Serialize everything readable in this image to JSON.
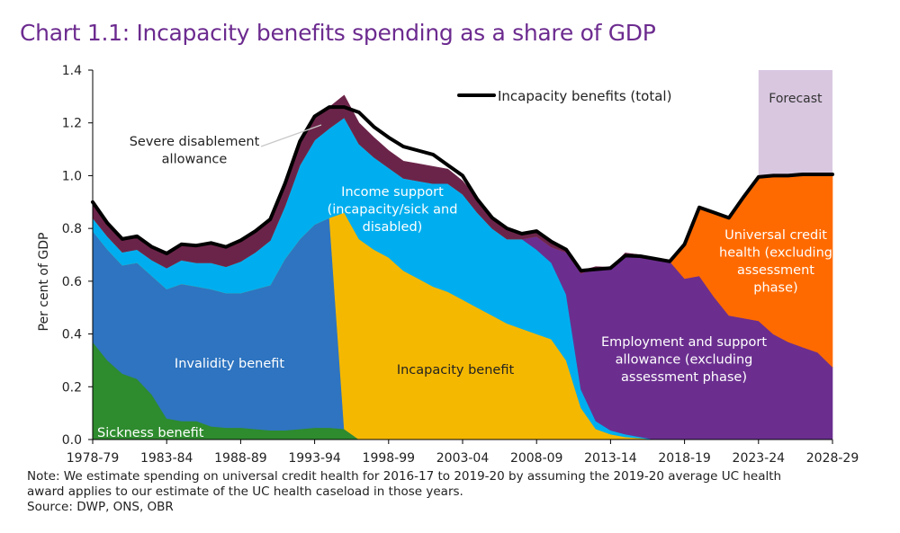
{
  "title": "Chart 1.1: Incapacity benefits spending as a share of GDP",
  "notes": {
    "note_line1": "Note: We estimate spending on universal credit health for 2016-17 to 2019-20 by assuming the 2019-20 average UC health",
    "note_line2": "award applies to our estimate of the UC health caseload in those years.",
    "source": "Source: DWP, ONS, OBR"
  },
  "chart_data": {
    "type": "area",
    "stacked": true,
    "title": "Chart 1.1: Incapacity benefits spending as a share of GDP",
    "xlabel": "",
    "ylabel": "Per cent of GDP",
    "ylim": [
      0,
      1.4
    ],
    "yticks": [
      "0.0",
      "0.2",
      "0.4",
      "0.6",
      "0.8",
      "1.0",
      "1.2",
      "1.4"
    ],
    "xticks": [
      "1978-79",
      "1983-84",
      "1988-89",
      "1993-94",
      "1998-99",
      "2003-04",
      "2008-09",
      "2013-14",
      "2018-19",
      "2023-24",
      "2028-29"
    ],
    "x_first_year": 1978,
    "x_last_year": 2028,
    "grid": false,
    "forecast": {
      "label": "Forecast",
      "from_year": 2023,
      "to_year": 2028,
      "color": "#d9c7e0"
    },
    "legend": {
      "label": "Incapacity benefits (total)",
      "position": "top-center"
    },
    "series": [
      {
        "name": "Sickness benefit",
        "color": "#2e8b2e",
        "values": [
          0.37,
          0.3,
          0.25,
          0.23,
          0.17,
          0.08,
          0.07,
          0.07,
          0.05,
          0.045,
          0.045,
          0.04,
          0.035,
          0.035,
          0.04,
          0.045,
          0.045,
          0.04,
          0,
          0,
          0,
          0,
          0,
          0,
          0,
          0,
          0,
          0,
          0,
          0,
          0,
          0,
          0,
          0,
          0,
          0,
          0,
          0,
          0,
          0,
          0,
          0,
          0,
          0,
          0,
          0,
          0,
          0,
          0,
          0,
          0
        ]
      },
      {
        "name": "Invalidity benefit",
        "color": "#2e74c0",
        "values": [
          0.42,
          0.42,
          0.41,
          0.44,
          0.45,
          0.49,
          0.52,
          0.51,
          0.52,
          0.51,
          0.51,
          0.53,
          0.55,
          0.65,
          0.72,
          0.77,
          0.795,
          0,
          0,
          0,
          0,
          0,
          0,
          0,
          0,
          0,
          0,
          0,
          0,
          0,
          0,
          0,
          0,
          0,
          0,
          0,
          0,
          0,
          0,
          0,
          0,
          0,
          0,
          0,
          0,
          0,
          0,
          0,
          0,
          0,
          0
        ]
      },
      {
        "name": "Incapacity benefit",
        "color": "#f5b800",
        "values": [
          0,
          0,
          0,
          0,
          0,
          0,
          0,
          0,
          0,
          0,
          0,
          0,
          0,
          0,
          0,
          0,
          0,
          0.82,
          0.76,
          0.72,
          0.69,
          0.64,
          0.61,
          0.58,
          0.56,
          0.53,
          0.5,
          0.47,
          0.44,
          0.42,
          0.4,
          0.38,
          0.3,
          0.12,
          0.04,
          0.02,
          0.01,
          0.005,
          0,
          0,
          0,
          0,
          0,
          0,
          0,
          0,
          0,
          0,
          0,
          0,
          0
        ]
      },
      {
        "name": "Income support (incapacity/sick and disabled)",
        "color": "#00aeef",
        "values": [
          0.05,
          0.05,
          0.05,
          0.05,
          0.06,
          0.08,
          0.09,
          0.09,
          0.1,
          0.1,
          0.12,
          0.14,
          0.17,
          0.2,
          0.28,
          0.32,
          0.34,
          0.36,
          0.36,
          0.35,
          0.34,
          0.35,
          0.37,
          0.39,
          0.41,
          0.4,
          0.36,
          0.33,
          0.32,
          0.34,
          0.32,
          0.29,
          0.25,
          0.07,
          0.03,
          0.015,
          0.01,
          0.005,
          0,
          0,
          0,
          0,
          0,
          0,
          0,
          0,
          0,
          0,
          0,
          0,
          0
        ]
      },
      {
        "name": "Employment and support allowance (excluding assessment phase)",
        "color": "#6b2e8f",
        "values": [
          0,
          0,
          0,
          0,
          0,
          0,
          0,
          0,
          0,
          0,
          0,
          0,
          0,
          0,
          0,
          0,
          0,
          0,
          0,
          0,
          0,
          0,
          0,
          0,
          0,
          0,
          0,
          0,
          0,
          0,
          0.05,
          0.06,
          0.16,
          0.44,
          0.58,
          0.615,
          0.685,
          0.69,
          0.685,
          0.675,
          0.61,
          0.62,
          0.54,
          0.47,
          0.46,
          0.45,
          0.4,
          0.37,
          0.35,
          0.33,
          0.275
        ]
      },
      {
        "name": "Universal credit health (excluding assessment phase)",
        "color": "#ff6a00",
        "values": [
          0,
          0,
          0,
          0,
          0,
          0,
          0,
          0,
          0,
          0,
          0,
          0,
          0,
          0,
          0,
          0,
          0,
          0,
          0,
          0,
          0,
          0,
          0,
          0,
          0,
          0,
          0,
          0,
          0,
          0,
          0,
          0,
          0,
          0,
          0,
          0,
          0,
          0,
          0,
          0,
          0.13,
          0.26,
          0.32,
          0.37,
          0.46,
          0.545,
          0.595,
          0.63,
          0.655,
          0.675,
          0.73
        ]
      },
      {
        "name": "Severe disablement allowance",
        "color": "#6b2449",
        "values": [
          0.06,
          0.05,
          0.05,
          0.05,
          0.05,
          0.055,
          0.06,
          0.065,
          0.07,
          0.075,
          0.08,
          0.08,
          0.08,
          0.085,
          0.09,
          0.09,
          0.08,
          0.085,
          0.08,
          0.075,
          0.065,
          0.065,
          0.065,
          0.065,
          0.055,
          0.05,
          0.05,
          0.04,
          0.04,
          0.02,
          0.02,
          0.02,
          0.01,
          0.01,
          0.005,
          0.003,
          0.002,
          0,
          0,
          0,
          0,
          0,
          0,
          0,
          0,
          0,
          0,
          0,
          0,
          0,
          0
        ]
      }
    ],
    "total": {
      "name": "Incapacity benefits (total)",
      "color": "#000000",
      "values": [
        0.9,
        0.82,
        0.76,
        0.77,
        0.73,
        0.705,
        0.74,
        0.735,
        0.745,
        0.73,
        0.755,
        0.79,
        0.835,
        0.97,
        1.13,
        1.225,
        1.26,
        1.26,
        1.24,
        1.185,
        1.145,
        1.11,
        1.095,
        1.08,
        1.04,
        1.0,
        0.91,
        0.84,
        0.8,
        0.78,
        0.79,
        0.75,
        0.72,
        0.64,
        0.645,
        0.65,
        0.697,
        0.695,
        0.685,
        0.675,
        0.74,
        0.88,
        0.86,
        0.84,
        0.92,
        0.995,
        1.0,
        1.0,
        1.005,
        1.005,
        1.005
      ]
    },
    "annotations": [
      {
        "text": "Sickness benefit",
        "color": "#ffffff"
      },
      {
        "text": "Invalidity benefit",
        "color": "#ffffff"
      },
      {
        "text": "Incapacity benefit",
        "color": "#222222"
      },
      {
        "lines": [
          "Income support",
          "(incapacity/sick and",
          "disabled)"
        ],
        "color": "#ffffff"
      },
      {
        "lines": [
          "Employment and support",
          "allowance (excluding",
          "assessment phase)"
        ],
        "color": "#ffffff"
      },
      {
        "lines": [
          "Universal credit",
          "health (excluding",
          "assessment",
          "phase)"
        ],
        "color": "#ffffff"
      },
      {
        "lines": [
          "Severe disablement",
          "allowance"
        ],
        "color": "#222222"
      }
    ]
  }
}
